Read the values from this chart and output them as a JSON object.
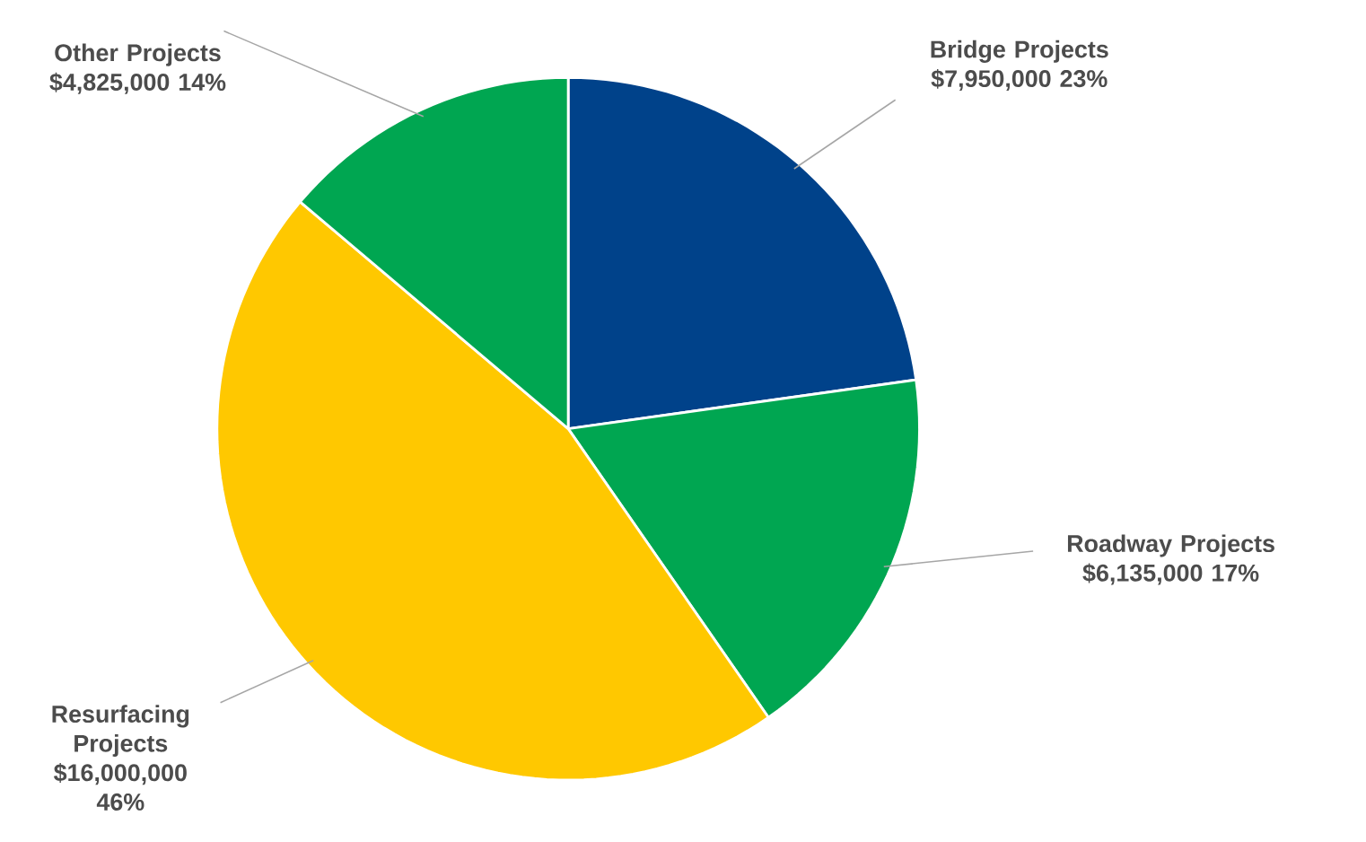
{
  "chart_data": {
    "type": "pie",
    "categories": [
      "Bridge Projects",
      "Roadway Projects",
      "Resurfacing Projects",
      "Other Projects"
    ],
    "values": [
      7950000,
      6135000,
      16000000,
      4825000
    ],
    "colors": [
      "#00428a",
      "#00a651",
      "#ffc800",
      "#00a651"
    ],
    "value_labels": [
      "$7,950,000 23%",
      "$6,135,000 17%",
      "$16,000,000 46%",
      "$4,825,000 14%"
    ]
  }
}
